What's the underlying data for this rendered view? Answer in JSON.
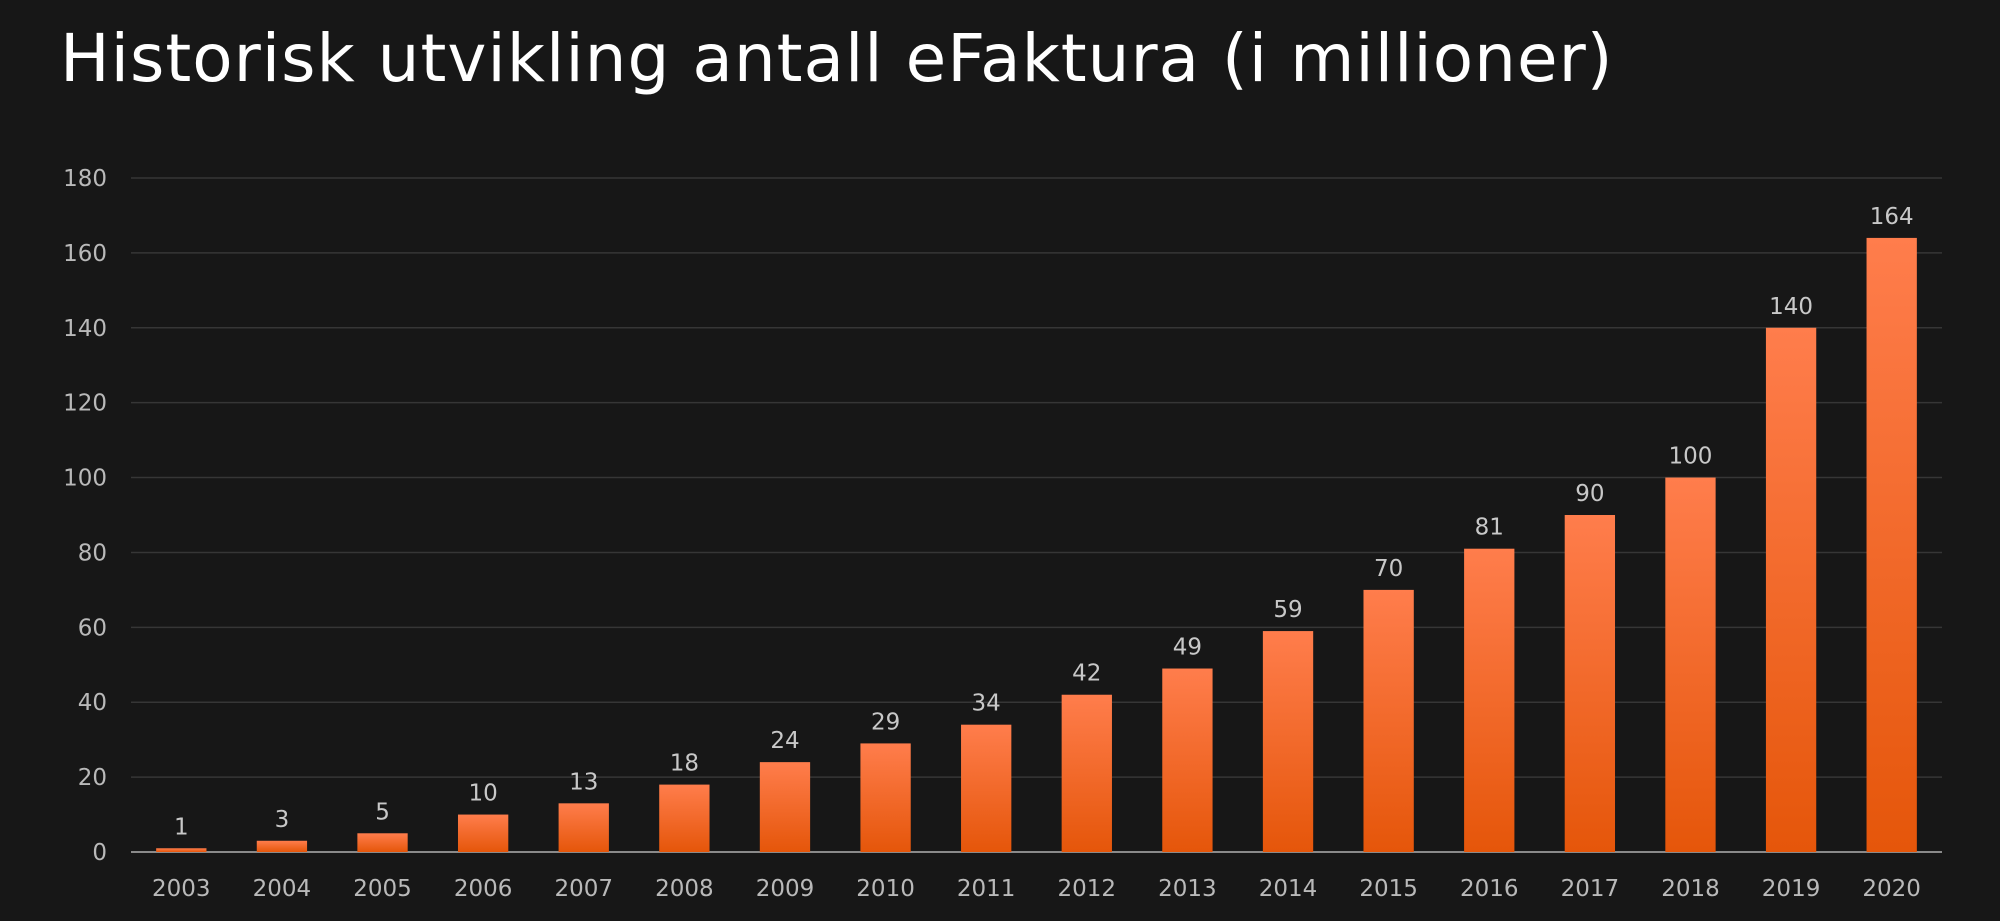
{
  "chart_data": {
    "type": "bar",
    "title": "Historisk utvikling antall eFaktura (i millioner)",
    "categories": [
      "2003",
      "2004",
      "2005",
      "2006",
      "2007",
      "2008",
      "2009",
      "2010",
      "2011",
      "2012",
      "2013",
      "2014",
      "2015",
      "2016",
      "2017",
      "2018",
      "2019",
      "2020"
    ],
    "values": [
      1,
      3,
      5,
      10,
      13,
      18,
      24,
      29,
      34,
      42,
      49,
      59,
      70,
      81,
      90,
      100,
      140,
      164
    ],
    "data_labels": [
      "1",
      "3",
      "5",
      "10",
      "13",
      "18",
      "24",
      "29",
      "34",
      "42",
      "49",
      "59",
      "70",
      "81",
      "90",
      "100",
      "140",
      "164"
    ],
    "y_ticks": [
      0,
      20,
      40,
      60,
      80,
      100,
      120,
      140,
      160,
      180
    ],
    "ylim": [
      0,
      180
    ],
    "xlabel": "",
    "ylabel": "",
    "grid": true,
    "legend": "none",
    "colors": {
      "background": "#171717",
      "bar_top": "#ff7d4c",
      "bar_bottom": "#e5560a",
      "gridline": "#363636",
      "axis": "#8a8a8a",
      "tick_text": "#b9b9b9",
      "label_text": "#c8c8c8",
      "title_text": "#ffffff"
    }
  }
}
